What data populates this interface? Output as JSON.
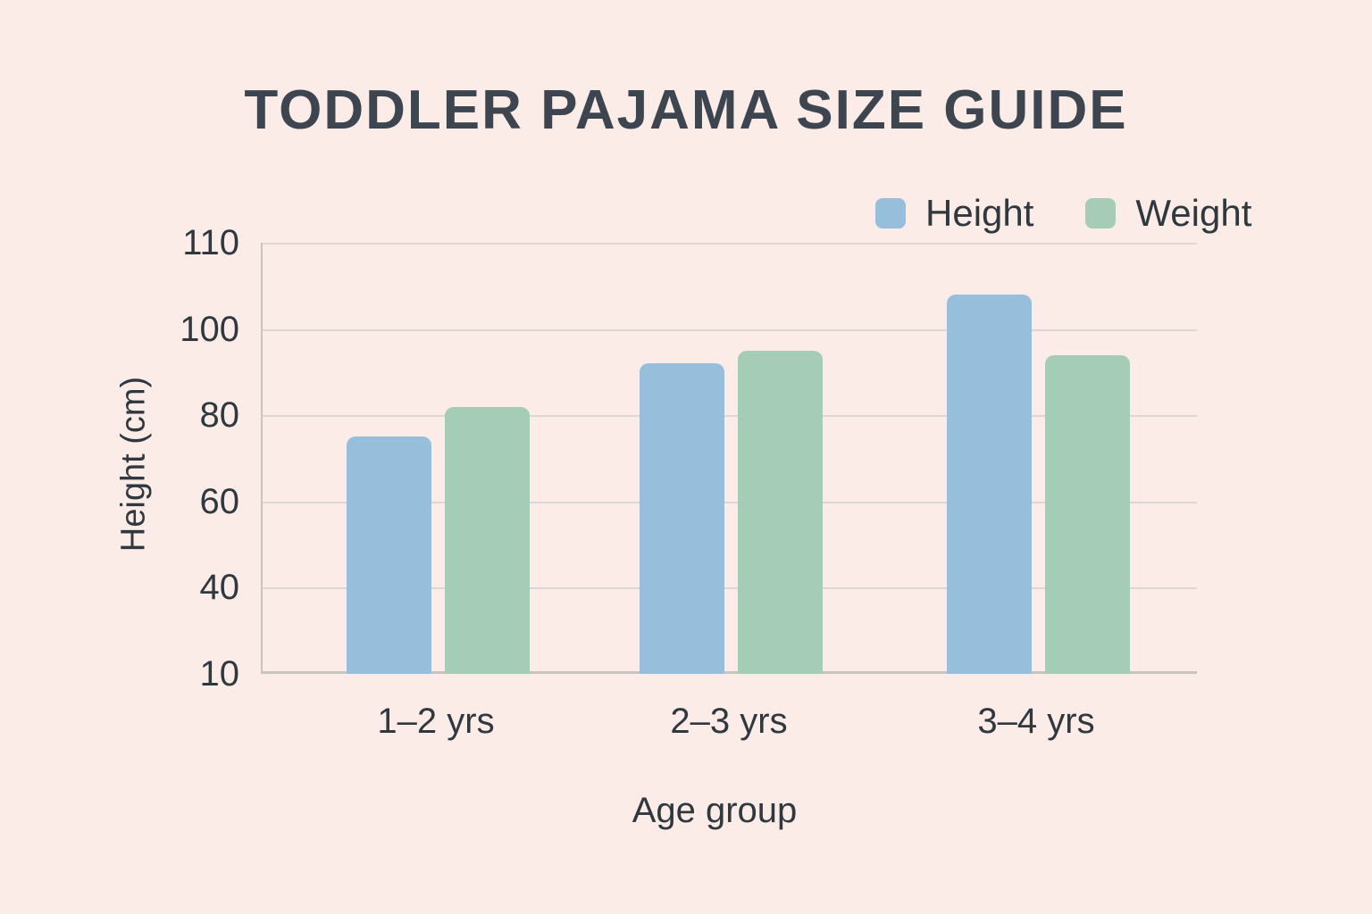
{
  "chart_data": {
    "type": "bar",
    "title": "TODDLER PAJAMA SIZE GUIDE",
    "categories": [
      "1–2 yrs",
      "2–3 yrs",
      "3–4 yrs"
    ],
    "series": [
      {
        "name": "Height",
        "color": "#97bfdc",
        "values": [
          75,
          92,
          104
        ]
      },
      {
        "name": "Weight",
        "color": "#a5ccb7",
        "values": [
          82,
          95,
          94
        ]
      }
    ],
    "xlabel": "Age group",
    "ylabel": "Height (cm)",
    "y_ticks": [
      110,
      100,
      80,
      60,
      40,
      10
    ],
    "y_tick_spacing": "uniform",
    "grid": true,
    "legend_position": "top-right"
  },
  "colors": {
    "background": "#fbece7",
    "title_text": "#3d4650",
    "axis_text": "#30383f",
    "gridline": "#ddd6d3",
    "axis_line": "#c9c3c0"
  }
}
